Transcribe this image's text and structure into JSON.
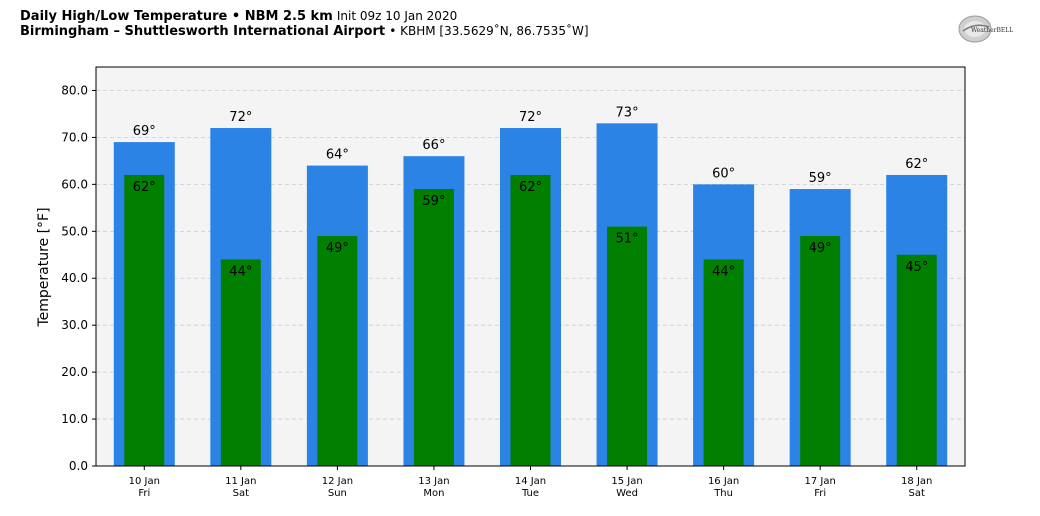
{
  "header": {
    "title_bold": "Daily High/Low Temperature • NBM 2.5 km",
    "title_init": "Init 09z 10 Jan 2020",
    "subtitle_bold": "Birmingham – Shuttlesworth International Airport",
    "subtitle_rest": "• KBHM [33.5629˚N, 86.7535˚W]"
  },
  "logo": {
    "icon": "weatherbell-logo",
    "text": "WeatherBELL"
  },
  "chart_data": {
    "type": "bar",
    "title": "Daily High/Low Temperature • NBM 2.5 km",
    "ylabel": "Temperature [°F]",
    "xlabel": "",
    "ylim": [
      0,
      85
    ],
    "yticks": [
      "0.0",
      "10.0",
      "20.0",
      "30.0",
      "40.0",
      "50.0",
      "60.0",
      "70.0",
      "80.0"
    ],
    "grid": true,
    "categories": [
      {
        "date": "10 Jan",
        "day": "Fri"
      },
      {
        "date": "11 Jan",
        "day": "Sat"
      },
      {
        "date": "12 Jan",
        "day": "Sun"
      },
      {
        "date": "13 Jan",
        "day": "Mon"
      },
      {
        "date": "14 Jan",
        "day": "Tue"
      },
      {
        "date": "15 Jan",
        "day": "Wed"
      },
      {
        "date": "16 Jan",
        "day": "Thu"
      },
      {
        "date": "17 Jan",
        "day": "Fri"
      },
      {
        "date": "18 Jan",
        "day": "Sat"
      }
    ],
    "series": [
      {
        "key": "high",
        "color": "#2b83e6",
        "values": [
          69,
          72,
          64,
          66,
          72,
          73,
          60,
          59,
          62
        ],
        "labels": [
          "69°",
          "72°",
          "64°",
          "66°",
          "72°",
          "73°",
          "60°",
          "59°",
          "62°"
        ]
      },
      {
        "key": "low",
        "color": "#007f00",
        "values": [
          62,
          44,
          49,
          59,
          62,
          51,
          44,
          49,
          45
        ],
        "labels": [
          "62°",
          "44°",
          "49°",
          "59°",
          "62°",
          "51°",
          "44°",
          "49°",
          "45°"
        ]
      }
    ],
    "plot_bg": "#f4f4f4"
  }
}
